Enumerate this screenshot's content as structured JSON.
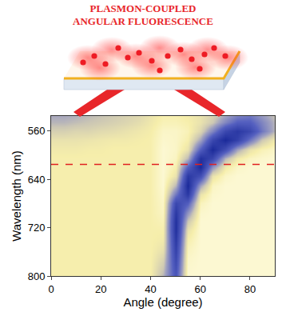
{
  "schematic": {
    "title": [
      "PLASMON-COUPLED",
      "ANGULAR FLUORESCENCE"
    ]
  },
  "chart_data": {
    "type": "heatmap",
    "x_label": "Angle (degree)",
    "y_label": "Wavelength (nm)",
    "x": [
      0,
      5,
      10,
      15,
      20,
      25,
      30,
      35,
      40,
      45,
      50,
      55,
      60,
      65,
      70,
      75,
      80,
      85,
      90
    ],
    "y": [
      530,
      545,
      560,
      575,
      590,
      605,
      620,
      635,
      650,
      665,
      680,
      695,
      710,
      725,
      740,
      755,
      770,
      785,
      800
    ],
    "z": [
      [
        0.35,
        0.35,
        0.33,
        0.3,
        0.28,
        0.25,
        0.22,
        0.2,
        0.15,
        0.1,
        0.1,
        0.12,
        0.15,
        0.2,
        0.3,
        0.4,
        0.45,
        0.35,
        0.25
      ],
      [
        0.3,
        0.3,
        0.28,
        0.26,
        0.24,
        0.22,
        0.2,
        0.17,
        0.13,
        0.08,
        0.08,
        0.1,
        0.15,
        0.25,
        0.45,
        0.6,
        0.6,
        0.45,
        0.3
      ],
      [
        0.22,
        0.22,
        0.2,
        0.2,
        0.18,
        0.17,
        0.15,
        0.13,
        0.11,
        0.05,
        0.05,
        0.08,
        0.2,
        0.45,
        0.75,
        0.85,
        0.75,
        0.5,
        0.3
      ],
      [
        0.15,
        0.15,
        0.15,
        0.14,
        0.13,
        0.12,
        0.12,
        0.11,
        0.1,
        0.04,
        0.05,
        0.1,
        0.35,
        0.75,
        0.95,
        0.8,
        0.5,
        0.25,
        0.12
      ],
      [
        0.12,
        0.12,
        0.12,
        0.11,
        0.11,
        0.1,
        0.1,
        0.1,
        0.1,
        0.03,
        0.05,
        0.15,
        0.6,
        0.95,
        0.7,
        0.35,
        0.15,
        0.08,
        0.05
      ],
      [
        0.1,
        0.1,
        0.1,
        0.1,
        0.1,
        0.1,
        0.1,
        0.1,
        0.1,
        0.03,
        0.06,
        0.3,
        0.9,
        0.75,
        0.3,
        0.12,
        0.06,
        0.04,
        0.03
      ],
      [
        0.1,
        0.1,
        0.1,
        0.1,
        0.1,
        0.1,
        0.1,
        0.1,
        0.1,
        0.03,
        0.1,
        0.6,
        0.95,
        0.4,
        0.12,
        0.05,
        0.03,
        0.03,
        0.03
      ],
      [
        0.1,
        0.1,
        0.1,
        0.1,
        0.1,
        0.1,
        0.1,
        0.1,
        0.1,
        0.03,
        0.15,
        0.85,
        0.7,
        0.15,
        0.05,
        0.03,
        0.03,
        0.03,
        0.03
      ],
      [
        0.1,
        0.1,
        0.1,
        0.1,
        0.1,
        0.1,
        0.1,
        0.1,
        0.1,
        0.03,
        0.3,
        0.95,
        0.35,
        0.06,
        0.03,
        0.03,
        0.03,
        0.03,
        0.03
      ],
      [
        0.1,
        0.1,
        0.1,
        0.1,
        0.1,
        0.1,
        0.1,
        0.1,
        0.1,
        0.04,
        0.5,
        0.85,
        0.15,
        0.04,
        0.03,
        0.03,
        0.03,
        0.03,
        0.03
      ],
      [
        0.1,
        0.1,
        0.1,
        0.1,
        0.1,
        0.1,
        0.1,
        0.1,
        0.1,
        0.05,
        0.75,
        0.6,
        0.07,
        0.03,
        0.03,
        0.03,
        0.03,
        0.03,
        0.03
      ],
      [
        0.1,
        0.1,
        0.1,
        0.1,
        0.1,
        0.1,
        0.1,
        0.1,
        0.1,
        0.06,
        0.85,
        0.4,
        0.04,
        0.03,
        0.03,
        0.03,
        0.03,
        0.03,
        0.03
      ],
      [
        0.1,
        0.1,
        0.1,
        0.1,
        0.1,
        0.1,
        0.1,
        0.1,
        0.1,
        0.08,
        0.9,
        0.25,
        0.03,
        0.03,
        0.03,
        0.03,
        0.03,
        0.03,
        0.03
      ],
      [
        0.1,
        0.1,
        0.1,
        0.1,
        0.1,
        0.1,
        0.1,
        0.1,
        0.1,
        0.1,
        0.9,
        0.15,
        0.03,
        0.03,
        0.03,
        0.03,
        0.03,
        0.03,
        0.03
      ],
      [
        0.1,
        0.1,
        0.1,
        0.1,
        0.1,
        0.1,
        0.1,
        0.1,
        0.1,
        0.12,
        0.85,
        0.1,
        0.03,
        0.03,
        0.03,
        0.03,
        0.03,
        0.03,
        0.03
      ],
      [
        0.1,
        0.1,
        0.1,
        0.1,
        0.1,
        0.1,
        0.1,
        0.1,
        0.1,
        0.15,
        0.8,
        0.07,
        0.03,
        0.03,
        0.03,
        0.03,
        0.03,
        0.03,
        0.03
      ],
      [
        0.1,
        0.1,
        0.1,
        0.1,
        0.1,
        0.1,
        0.1,
        0.1,
        0.1,
        0.2,
        0.75,
        0.05,
        0.03,
        0.03,
        0.03,
        0.03,
        0.03,
        0.03,
        0.03
      ],
      [
        0.1,
        0.1,
        0.1,
        0.1,
        0.1,
        0.1,
        0.1,
        0.1,
        0.1,
        0.25,
        0.7,
        0.04,
        0.03,
        0.03,
        0.03,
        0.03,
        0.03,
        0.03,
        0.03
      ],
      [
        0.1,
        0.1,
        0.1,
        0.1,
        0.1,
        0.1,
        0.1,
        0.1,
        0.1,
        0.3,
        0.65,
        0.03,
        0.03,
        0.03,
        0.03,
        0.03,
        0.03,
        0.03,
        0.03
      ]
    ],
    "xlim": [
      0,
      90
    ],
    "xticks": [
      0,
      20,
      40,
      60,
      80
    ],
    "ylim": [
      800,
      535
    ],
    "yticks": [
      560,
      640,
      720,
      800
    ],
    "reference_line": {
      "y": 615,
      "color": "#e02020",
      "line_style": "dashed"
    }
  }
}
